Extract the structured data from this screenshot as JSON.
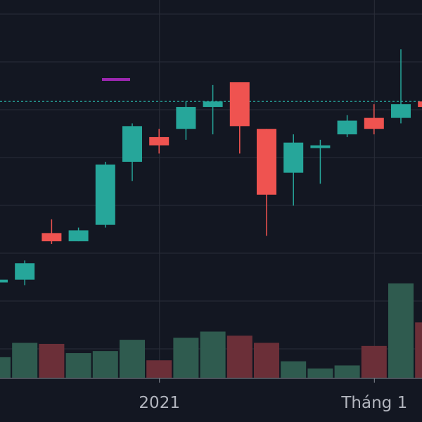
{
  "chart_data": {
    "type": "candlestick",
    "title": "",
    "xlabel": "",
    "ylabel": "",
    "grid": true,
    "ylim": [
      14,
      27.8
    ],
    "volume_ylim": [
      0,
      4.6
    ],
    "price_line": 24.1,
    "indicator_value": 24.9,
    "x_ticks": [
      {
        "label": "2021",
        "index": 6
      },
      {
        "label": "Tháng 1",
        "index": 14
      }
    ],
    "candles": [
      {
        "o": 17.5,
        "h": 17.6,
        "l": 17.4,
        "c": 17.6,
        "v": 1.0
      },
      {
        "o": 17.6,
        "h": 18.3,
        "l": 17.4,
        "c": 18.2,
        "v": 1.7
      },
      {
        "o": 19.3,
        "h": 19.8,
        "l": 18.9,
        "c": 19.0,
        "v": 1.65
      },
      {
        "o": 19.0,
        "h": 19.5,
        "l": 19.0,
        "c": 19.4,
        "v": 1.2
      },
      {
        "o": 19.6,
        "h": 21.9,
        "l": 19.5,
        "c": 21.8,
        "v": 1.3
      },
      {
        "o": 21.9,
        "h": 23.3,
        "l": 21.2,
        "c": 23.2,
        "v": 1.85
      },
      {
        "o": 22.8,
        "h": 23.1,
        "l": 22.2,
        "c": 22.5,
        "v": 0.85
      },
      {
        "o": 23.1,
        "h": 24.1,
        "l": 22.7,
        "c": 23.9,
        "v": 1.95
      },
      {
        "o": 23.9,
        "h": 24.7,
        "l": 22.9,
        "c": 24.1,
        "v": 2.25
      },
      {
        "o": 24.8,
        "h": 24.8,
        "l": 22.2,
        "c": 23.2,
        "v": 2.05
      },
      {
        "o": 23.1,
        "h": 23.1,
        "l": 19.2,
        "c": 20.7,
        "v": 1.7
      },
      {
        "o": 21.5,
        "h": 22.9,
        "l": 20.3,
        "c": 22.6,
        "v": 0.8
      },
      {
        "o": 22.4,
        "h": 22.7,
        "l": 21.1,
        "c": 22.5,
        "v": 0.45
      },
      {
        "o": 22.9,
        "h": 23.6,
        "l": 22.8,
        "c": 23.4,
        "v": 0.6
      },
      {
        "o": 23.5,
        "h": 24.0,
        "l": 22.9,
        "c": 23.1,
        "v": 1.55
      },
      {
        "o": 23.5,
        "h": 26.0,
        "l": 23.3,
        "c": 24.0,
        "v": 4.6
      },
      {
        "o": 24.1,
        "h": 24.2,
        "l": 23.7,
        "c": 23.9,
        "v": 2.7
      }
    ]
  },
  "colors": {
    "background": "#131722",
    "grid": "#2a2e39",
    "up": "#26a69a",
    "down": "#ef5350",
    "volume_up": "#2f5b4f",
    "volume_down": "#6b2f38",
    "price_line": "#26a69a",
    "indicator": "#9c27b0",
    "axis_text": "#b2b5be",
    "axis_line": "#868993"
  }
}
